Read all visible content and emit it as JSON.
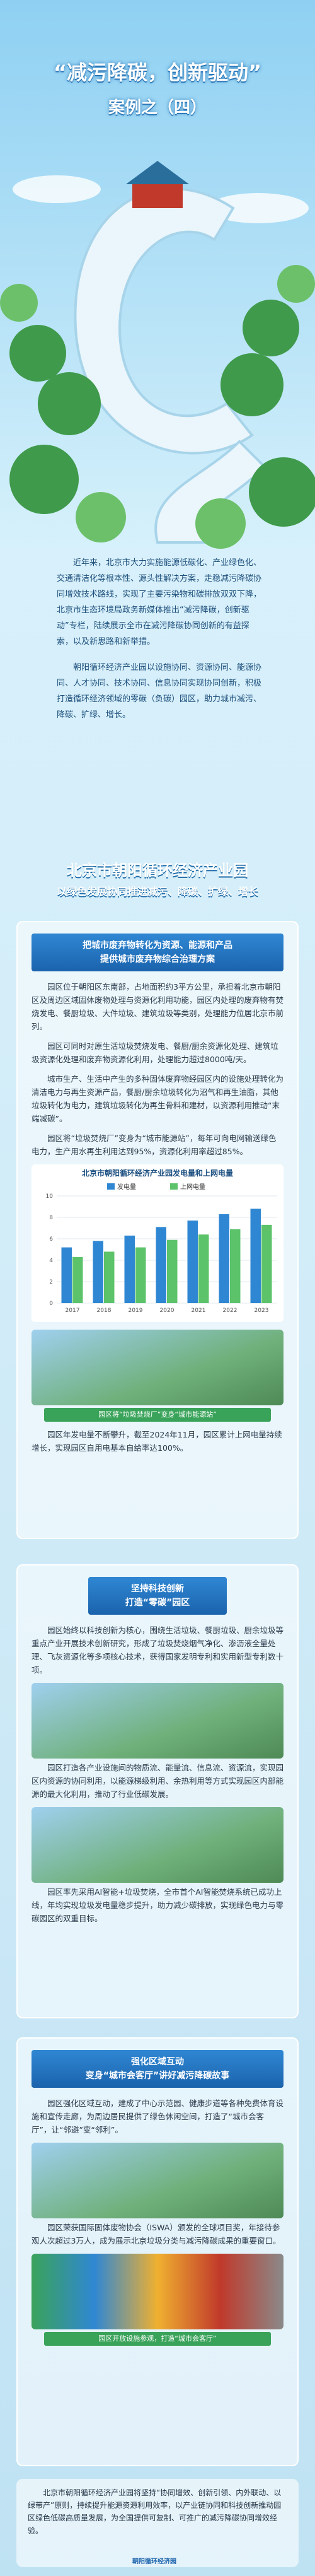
{
  "header": {
    "title": "“减污降碳，创新驱动”",
    "subtitle": "案例之（四）"
  },
  "intro": [
    "近年来，北京市大力实施能源低碳化、产业绿色化、交通清洁化等根本性、源头性解决方案，走稳减污降碳协同增效技术路线，实现了主要污染物和碳排放双双下降，北京市生态环境局政务新媒体推出“减污降碳，创新驱动”专栏，陆续展示全市在减污降碳协同创新的有益探索，以及新思路和新举措。",
    "朝阳循环经济产业园以设施协同、资源协同、能源协同、人才协同、技术协同、信息协同实现协同创新，积极打造循环经济领域的零碳（负碳）园区，助力城市减污、降碳、扩绿、增长。"
  ],
  "heading": {
    "title": "北京市朝阳循环经济产业园",
    "subtitle": "以绿色发展协同推进减污、降碳、扩绿、增长"
  },
  "section1": {
    "banner": [
      "把城市废弃物转化为资源、能源和产品",
      "提供城市废弃物综合治理方案"
    ],
    "paragraphs": [
      "园区位于朝阳区东南部，占地面积约3平方公里，承担着北京市朝阳区及周边区域固体废物处理与资源化利用功能，园区内处理的废弃物有焚烧发电、餐厨垃圾、大件垃圾、建筑垃圾等类别，处理能力位居北京市前列。",
      "园区可同时对原生活垃圾焚烧发电、餐厨/厨余资源化处理、建筑垃圾资源化处理和废弃物资源化利用，处理能力超过8000吨/天。",
      "城市生产、生活中产生的多种固体废弃物经园区内的设施处理转化为清洁电力与再生资源产品，餐厨/厨余垃圾转化为沼气和再生油脂，其他垃圾转化为电力，建筑垃圾转化为再生骨料和建材，以资源利用推动“末端减碳”。",
      "园区将“垃圾焚烧厂”变身为“城市能源站”，每年可向电网输送绿色电力，生产用水再生利用达到95%，资源化利用率超过85%。"
    ],
    "chart": {
      "title": "北京市朝阳循环经济产业园发电量和上网电量",
      "categories": [
        "2017",
        "2018",
        "2019",
        "2020",
        "2021",
        "2022",
        "2023"
      ],
      "series": [
        {
          "name": "发电量",
          "color": "#2f87d3",
          "values": [
            5.2,
            5.8,
            6.3,
            7.1,
            7.7,
            8.3,
            8.8
          ]
        },
        {
          "name": "上网电量",
          "color": "#5cc36a",
          "values": [
            4.3,
            4.8,
            5.2,
            5.9,
            6.4,
            6.9,
            7.3
          ]
        }
      ],
      "ylim": [
        0,
        10
      ],
      "yticks": [
        0,
        2,
        4,
        6,
        8,
        10
      ]
    },
    "caption": "园区将“垃圾焚烧厂”变身“城市能源站”",
    "closing": "园区年发电量不断攀升，截至2024年11月，园区累计上网电量持续增长，实现园区自用电基本自给率达100%。"
  },
  "section2": {
    "banner": [
      "坚持科技创新",
      "打造“零碳”园区"
    ],
    "paragraphs": [
      "园区始终以科技创新为核心，围绕生活垃圾、餐厨垃圾、厨余垃圾等重点产业开展技术创新研究，形成了垃圾焚烧烟气净化、渗沥液全量处理、飞灰资源化等多项核心技术，获得国家发明专利和实用新型专利数十项。",
      "园区打造各产业设施间的物质流、能量流、信息流、资源流，实现园区内资源的协同利用，以能源梯级利用、余热利用等方式实现园区内部能源的最大化利用，推动了行业低碳发展。",
      "园区率先采用AI智能+垃圾焚烧，全市首个AI智能焚烧系统已成功上线，年均实现垃圾发电量稳步提升，助力减少碳排放，实现绿色电力与零碳园区的双重目标。"
    ]
  },
  "section3": {
    "banner": [
      "强化区域互动",
      "变身“城市会客厅”讲好减污降碳故事"
    ],
    "paragraphs": [
      "园区强化区域互动，建成了中心示范园、健康步道等各种免费体育设施和宣传走廊，为周边居民提供了绿色休闲空间，打造了“城市会客厅”，让“邻避”变“邻利”。",
      "园区荣获国际固体废物协会（ISWA）颁发的全球项目奖，年接待参观人次超过3万人，成为展示北京垃圾分类与减污降碳成果的重要窗口。"
    ],
    "caption": "园区开放设施参观，打造“城市会客厅”"
  },
  "footer": {
    "text": "北京市朝阳循环经济产业园将坚持“协同增效、创新引领、内外联动、以绿带产”原则，持续提升能源资源利用效率，以产业链协同和科技创新推动园区绿色低碳高质量发展，为全国提供可复制、可推广的减污降碳协同增效经验。",
    "logo": "朝阳循环经济园"
  }
}
